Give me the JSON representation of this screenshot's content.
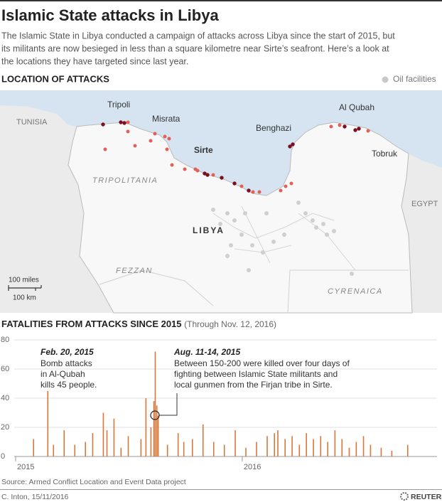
{
  "title": "Islamic State attacks in Libya",
  "subtitle": [
    "The Islamic State in Libya conducted a campaign of attacks across Libya since the start of 2015, but",
    "its militants are now besieged in less than a square kilometre near Sirte’s seafront. Here’s a look at",
    "the locations they have targeted since last year."
  ],
  "map": {
    "section_title": "LOCATION OF ATTACKS",
    "legend": "Oil facilities",
    "labels": [
      "TUNISIA",
      "Tripoli",
      "Misrata",
      "Sirte",
      "TRIPOLITANIA",
      "Benghazi",
      "Al Qubah",
      "Tobruk",
      "EGYPT",
      "LIBYA",
      "FEZZAN",
      "CYRENAICA"
    ],
    "scale": [
      "100 miles",
      "100 km"
    ]
  },
  "chart_data": {
    "type": "bar",
    "title": "FATALITIES FROM ATTACKS SINCE 2015",
    "subtitle": "(Through Nov. 12, 2016)",
    "x": [
      2015.079,
      2015.142,
      2015.167,
      2015.214,
      2015.261,
      2015.308,
      2015.34,
      2015.387,
      2015.403,
      2015.434,
      2015.465,
      2015.497,
      2015.553,
      2015.575,
      2015.597,
      2015.61,
      2015.616,
      2015.623,
      2015.629,
      2015.67,
      2015.717,
      2015.742,
      2015.78,
      2015.827,
      2015.874,
      2015.921,
      2015.969,
      2016.016,
      2016.063,
      2016.11,
      2016.142,
      2016.157,
      2016.189,
      2016.22,
      2016.252,
      2016.283,
      2016.314,
      2016.346,
      2016.377,
      2016.409,
      2016.44,
      2016.472,
      2016.503,
      2016.535,
      2016.566,
      2016.613,
      2016.66,
      2016.73
    ],
    "values": [
      12,
      45,
      8,
      18,
      8,
      10,
      16,
      30,
      18,
      26,
      6,
      14,
      12,
      40,
      20,
      38,
      72,
      35,
      28,
      8,
      16,
      10,
      12,
      22,
      10,
      8,
      18,
      6,
      10,
      14,
      16,
      18,
      12,
      14,
      8,
      16,
      12,
      14,
      10,
      18,
      12,
      6,
      10,
      14,
      8,
      6,
      4,
      8
    ],
    "color": "#d9773a",
    "xlim": [
      2014.99,
      2016.85
    ],
    "xticks": [
      2015,
      2016
    ],
    "ylim": [
      0,
      80
    ],
    "yticks": [
      0,
      20,
      40,
      60,
      80
    ],
    "grid": true,
    "annotations": [
      {
        "title": "Feb. 20, 2015",
        "lines": [
          "Bomb attacks",
          "in Al-Qubah",
          "kills 45 people."
        ]
      },
      {
        "title": "Aug. 11-14, 2015",
        "lines": [
          "Between 150-200 were killed over four days of",
          "fighting between Islamic State militants and",
          "local gunmen from the Firjan tribe in Sirte."
        ]
      }
    ]
  },
  "source": "Source: Armed Conflict Location and Event Data project",
  "credit": "C. Inton, 15/11/2016",
  "brand": "REUTERS"
}
